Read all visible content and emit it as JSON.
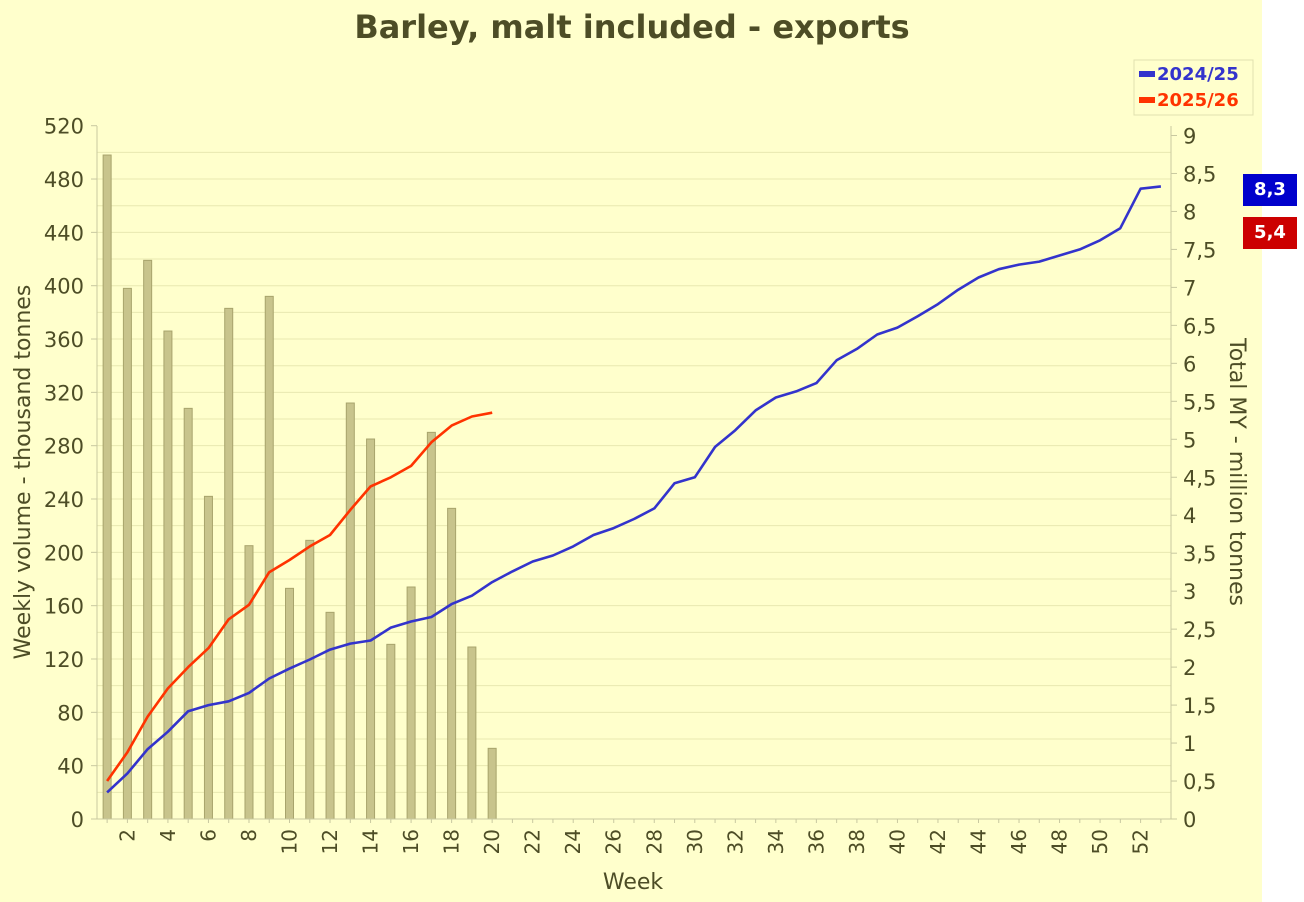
{
  "chart_data": {
    "type": "bar",
    "title": "Barley, malt included - exports",
    "xlabel": "Week",
    "ylabel_left": "Weekly volume - thousand tonnes",
    "ylabel_right": "Total MY - million tonnes",
    "left_axis": {
      "min": 0,
      "max": 520,
      "ticks": [
        0,
        40,
        80,
        120,
        160,
        200,
        240,
        280,
        320,
        360,
        400,
        440,
        480,
        520
      ]
    },
    "right_axis": {
      "min": 0,
      "max": 9,
      "ticks": [
        "0",
        "0,5",
        "1",
        "1,5",
        "2",
        "2,5",
        "3",
        "3,5",
        "4",
        "4,5",
        "5",
        "5,5",
        "6",
        "6,5",
        "7",
        "7,5",
        "8",
        "8,5",
        "9"
      ]
    },
    "x_ticks": [
      2,
      4,
      6,
      8,
      10,
      12,
      14,
      16,
      18,
      20,
      22,
      24,
      26,
      28,
      30,
      32,
      34,
      36,
      38,
      40,
      42,
      44,
      46,
      48,
      50,
      52
    ],
    "weeks": [
      1,
      2,
      3,
      4,
      5,
      6,
      7,
      8,
      9,
      10,
      11,
      12,
      13,
      14,
      15,
      16,
      17,
      18,
      19,
      20,
      21,
      22,
      23,
      24,
      25,
      26,
      27,
      28,
      29,
      30,
      31,
      32,
      33,
      34,
      35,
      36,
      37,
      38,
      39,
      40,
      41,
      42,
      43,
      44,
      45,
      46,
      47,
      48,
      49,
      50,
      51,
      52,
      53
    ],
    "bars": {
      "name": "Weekly volume 2025/26",
      "color": "#c8c48c",
      "values": [
        498,
        398,
        419,
        366,
        308,
        242,
        383,
        205,
        392,
        173,
        209,
        155,
        312,
        285,
        131,
        174,
        290,
        233,
        129,
        53
      ]
    },
    "series": [
      {
        "name": "2024/25",
        "color": "#3333cc",
        "values": [
          0.35,
          0.6,
          0.92,
          1.15,
          1.42,
          1.5,
          1.55,
          1.66,
          1.85,
          1.98,
          2.1,
          2.23,
          2.31,
          2.35,
          2.52,
          2.6,
          2.66,
          2.83,
          2.94,
          3.12,
          3.26,
          3.39,
          3.47,
          3.59,
          3.74,
          3.83,
          3.95,
          4.09,
          4.42,
          4.5,
          4.9,
          5.12,
          5.38,
          5.55,
          5.63,
          5.74,
          6.04,
          6.19,
          6.38,
          6.47,
          6.62,
          6.78,
          6.97,
          7.13,
          7.24,
          7.3,
          7.34,
          7.42,
          7.5,
          7.62,
          7.78,
          8.3,
          8.33
        ]
      },
      {
        "name": "2025/26",
        "color": "#ff3300",
        "values": [
          0.5,
          0.88,
          1.35,
          1.72,
          2.0,
          2.25,
          2.63,
          2.82,
          3.25,
          3.41,
          3.59,
          3.74,
          4.07,
          4.38,
          4.5,
          4.65,
          4.96,
          5.18,
          5.3,
          5.35
        ]
      }
    ],
    "legend": {
      "position": "top-right",
      "items": [
        "2024/25",
        "2025/26"
      ]
    },
    "badges": [
      {
        "label": "8,3",
        "color": "#0000cc"
      },
      {
        "label": "5,4",
        "color": "#cc0000"
      }
    ],
    "grid": true
  }
}
